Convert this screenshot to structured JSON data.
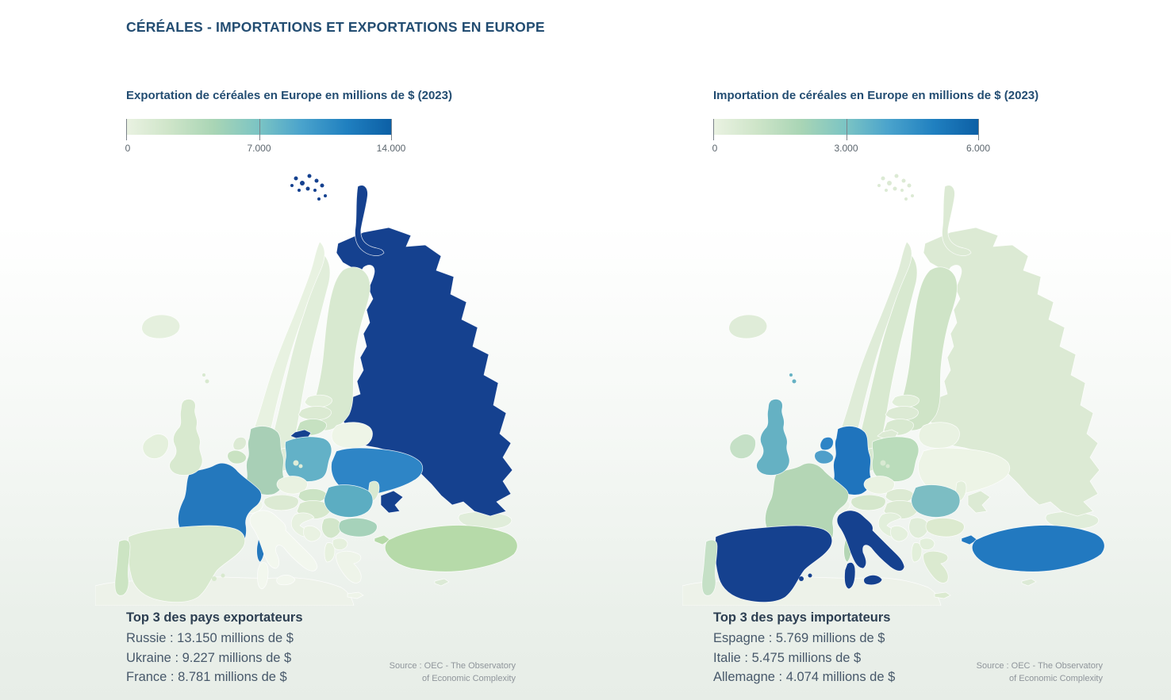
{
  "page": {
    "title": "CÉRÉALES - IMPORTATIONS ET EXPORTATIONS EN EUROPE"
  },
  "colors": {
    "title": "#234d72",
    "heading": "#2d3f52",
    "body_text": "#47586a",
    "scale_labels": "#5c666e",
    "source_text": "#8f959b",
    "sea": "#fcfdfc",
    "scale_gradient": [
      "#eaf2e2 0%",
      "#cfe5c9 16%",
      "#a9d5b5 33%",
      "#7bc4c4 50%",
      "#4aa3cc 66%",
      "#2080c0 83%",
      "#0c5fa5 100%"
    ]
  },
  "panels": {
    "export": {
      "subtitle": "Exportation de céréales en Europe en millions de $ (2023)",
      "scale": {
        "min": "0",
        "mid": "7.000",
        "max": "14.000"
      },
      "top3": {
        "heading": "Top 3 des pays exportateurs",
        "lines": [
          "Russie : 13.150 millions de $",
          "Ukraine : 9.227 millions de $",
          "France : 8.781 millions de $"
        ]
      },
      "source": {
        "line1": "Source : OEC - The Observatory",
        "line2": "of Economic Complexity"
      },
      "country_fills": {
        "russia": "#15418f",
        "ukraine": "#2e85c6",
        "france": "#2478bd",
        "poland": "#63b1c7",
        "romania": "#5cadc2",
        "bulgaria": "#a6d2ba",
        "germany": "#a8cfb6",
        "turkey": "#b6daa9",
        "hungary": "#d7e8cd",
        "slovakia": "#cbe3c4",
        "czechia": "#e9f2e1",
        "austria": "#dcead3",
        "switzerland": "#eef5ea",
        "italy": "#f2f7ee",
        "spain": "#d8e9ce",
        "portugal": "#cce4c3",
        "uk": "#d8e9cf",
        "ireland": "#e4f0dc",
        "iceland": "#e5f0de",
        "norway": "#e8f2e1",
        "sweden": "#e1eeda",
        "finland": "#d8e9d0",
        "denmark": "#dfecd8",
        "netherlands": "#dcead4",
        "belgium": "#c9e2c2",
        "estonia": "#e2efda",
        "latvia": "#dbead2",
        "lithuania": "#c6e1c1",
        "belarus": "#eef5e7",
        "moldova": "#d9e9d1",
        "serbia": "#d2e6ca",
        "croatia": "#e7f1e0",
        "bosnia": "#e9f2e2",
        "albania": "#e7f1df",
        "macedonia": "#e5f0dd",
        "greece": "#eef4e9",
        "cyprus": "#dcead6",
        "caucasus": "#e0edda",
        "africa": "#edf2e9"
      }
    },
    "import": {
      "subtitle": "Importation de céréales en Europe en millions de $ (2023)",
      "scale": {
        "min": "0",
        "mid": "3.000",
        "max": "6.000"
      },
      "top3": {
        "heading": "Top 3 des pays importateurs",
        "lines": [
          "Espagne : 5.769 millions de $",
          "Italie : 5.475 millions de $",
          "Allemagne : 4.074 millions de $"
        ]
      },
      "source": {
        "line1": "Source : OEC - The Observatory",
        "line2": "of Economic Complexity"
      },
      "country_fills": {
        "spain": "#15418f",
        "italy": "#15418f",
        "germany": "#1f74bd",
        "turkey": "#2279c0",
        "netherlands": "#2e84c6",
        "belgium": "#4f9fca",
        "uk": "#65b1c3",
        "romania": "#7cbdc3",
        "ireland": "#c5e0c6",
        "france": "#b4d6b5",
        "poland": "#badcbb",
        "portugal": "#c5e0c6",
        "denmark": "#d8e9d2",
        "switzerland": "#eef4ea",
        "austria": "#d5e7cc",
        "czechia": "#e9f2e1",
        "slovakia": "#dcead3",
        "hungary": "#dcead3",
        "bulgaria": "#dceacf",
        "greece": "#dbead0",
        "serbia": "#e0edd9",
        "croatia": "#e2efdb",
        "bosnia": "#e4f0dd",
        "albania": "#e2efda",
        "macedonia": "#e2efda",
        "russia": "#dcead4",
        "ukraine": "#edf4e6",
        "belarus": "#e9f2e2",
        "estonia": "#e0eed8",
        "latvia": "#dcead4",
        "lithuania": "#d8e9d0",
        "moldova": "#e3efdb",
        "norway": "#dfecd8",
        "sweden": "#d8e9d0",
        "finland": "#cfe4c7",
        "iceland": "#dfecd8",
        "cyprus": "#dcead6",
        "caucasus": "#e0edda",
        "africa": "#edf2e9"
      }
    }
  },
  "chart_data": [
    {
      "type": "heatmap",
      "subtype": "choropleth-map",
      "title": "Exportation de céréales en Europe en millions de $ (2023)",
      "unit": "millions de $",
      "year": 2023,
      "legend_position": "top-left above map",
      "colorscale": {
        "min": 0,
        "mid": 7000,
        "max": 14000,
        "ticks": [
          "0",
          "7.000",
          "14.000"
        ],
        "low_color": "#eaf2e2",
        "high_color": "#0c5fa5"
      },
      "values": [
        {
          "country": "Russie",
          "value": 13150
        },
        {
          "country": "Ukraine",
          "value": 9227
        },
        {
          "country": "France",
          "value": 8781
        }
      ],
      "annotations": [
        "Top 3 des pays exportateurs"
      ],
      "source": "Source : OEC - The Observatory of Economic Complexity"
    },
    {
      "type": "heatmap",
      "subtype": "choropleth-map",
      "title": "Importation de céréales en Europe en millions de $ (2023)",
      "unit": "millions de $",
      "year": 2023,
      "legend_position": "top-left above map",
      "colorscale": {
        "min": 0,
        "mid": 3000,
        "max": 6000,
        "ticks": [
          "0",
          "3.000",
          "6.000"
        ],
        "low_color": "#eaf2e2",
        "high_color": "#0c5fa5"
      },
      "values": [
        {
          "country": "Espagne",
          "value": 5769
        },
        {
          "country": "Italie",
          "value": 5475
        },
        {
          "country": "Allemagne",
          "value": 4074
        }
      ],
      "annotations": [
        "Top 3 des pays importateurs"
      ],
      "source": "Source : OEC - The Observatory of Economic Complexity"
    }
  ]
}
